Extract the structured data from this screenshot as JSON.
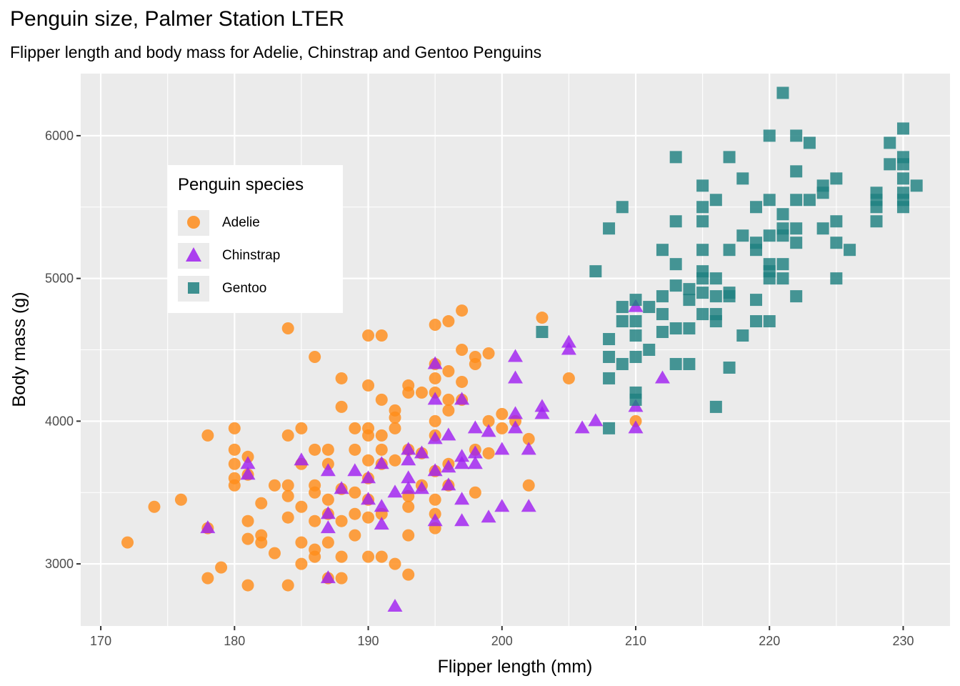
{
  "chart_data": {
    "type": "scatter",
    "title": "Penguin size, Palmer Station LTER",
    "subtitle": "Flipper length and body mass for Adelie, Chinstrap and Gentoo Penguins",
    "xlabel": "Flipper length (mm)",
    "ylabel": "Body mass (g)",
    "xlim": [
      168.5,
      233.5
    ],
    "ylim": [
      2565,
      6435
    ],
    "x_ticks": [
      170,
      180,
      190,
      200,
      210,
      220,
      230
    ],
    "y_ticks": [
      3000,
      4000,
      5000,
      6000
    ],
    "grid": true,
    "legend": {
      "title": "Penguin species",
      "placement": "inside top-left"
    },
    "series": [
      {
        "name": "Adelie",
        "color": "#FF8C1A",
        "shape": "circle",
        "points": [
          [
            172,
            3150
          ],
          [
            174,
            3400
          ],
          [
            176,
            3450
          ],
          [
            178,
            3900
          ],
          [
            178,
            3250
          ],
          [
            178,
            2900
          ],
          [
            179,
            2975
          ],
          [
            180,
            3950
          ],
          [
            180,
            3800
          ],
          [
            180,
            3700
          ],
          [
            180,
            3600
          ],
          [
            180,
            3550
          ],
          [
            181,
            3750
          ],
          [
            181,
            3625
          ],
          [
            181,
            3300
          ],
          [
            181,
            3175
          ],
          [
            181,
            2850
          ],
          [
            182,
            3200
          ],
          [
            182,
            3150
          ],
          [
            182,
            3425
          ],
          [
            183,
            3550
          ],
          [
            183,
            3075
          ],
          [
            184,
            4650
          ],
          [
            184,
            3900
          ],
          [
            184,
            3550
          ],
          [
            184,
            3475
          ],
          [
            184,
            3325
          ],
          [
            184,
            2850
          ],
          [
            185,
            3950
          ],
          [
            185,
            3700
          ],
          [
            185,
            3400
          ],
          [
            185,
            3150
          ],
          [
            185,
            3000
          ],
          [
            186,
            4450
          ],
          [
            186,
            3800
          ],
          [
            186,
            3550
          ],
          [
            186,
            3500
          ],
          [
            186,
            3300
          ],
          [
            186,
            3100
          ],
          [
            186,
            3050
          ],
          [
            187,
            3800
          ],
          [
            187,
            3700
          ],
          [
            187,
            3450
          ],
          [
            187,
            3350
          ],
          [
            187,
            3150
          ],
          [
            187,
            2900
          ],
          [
            188,
            4300
          ],
          [
            188,
            4100
          ],
          [
            188,
            3525
          ],
          [
            188,
            3300
          ],
          [
            188,
            3050
          ],
          [
            188,
            2900
          ],
          [
            189,
            3950
          ],
          [
            189,
            3800
          ],
          [
            189,
            3500
          ],
          [
            189,
            3350
          ],
          [
            189,
            3200
          ],
          [
            190,
            4600
          ],
          [
            190,
            4250
          ],
          [
            190,
            3950
          ],
          [
            190,
            3900
          ],
          [
            190,
            3725
          ],
          [
            190,
            3600
          ],
          [
            190,
            3450
          ],
          [
            190,
            3325
          ],
          [
            190,
            3050
          ],
          [
            191,
            4600
          ],
          [
            191,
            4150
          ],
          [
            191,
            3900
          ],
          [
            191,
            3800
          ],
          [
            191,
            3700
          ],
          [
            191,
            3350
          ],
          [
            191,
            3050
          ],
          [
            192,
            4075
          ],
          [
            192,
            4025
          ],
          [
            192,
            3950
          ],
          [
            192,
            3725
          ],
          [
            192,
            3000
          ],
          [
            193,
            4250
          ],
          [
            193,
            4200
          ],
          [
            193,
            3800
          ],
          [
            193,
            3475
          ],
          [
            193,
            3400
          ],
          [
            193,
            3200
          ],
          [
            193,
            2925
          ],
          [
            194,
            4200
          ],
          [
            194,
            3775
          ],
          [
            194,
            3550
          ],
          [
            195,
            4675
          ],
          [
            195,
            4400
          ],
          [
            195,
            4300
          ],
          [
            195,
            4200
          ],
          [
            195,
            4000
          ],
          [
            195,
            3900
          ],
          [
            195,
            3650
          ],
          [
            195,
            3450
          ],
          [
            195,
            3350
          ],
          [
            195,
            3250
          ],
          [
            196,
            4700
          ],
          [
            196,
            4350
          ],
          [
            196,
            4150
          ],
          [
            196,
            4075
          ],
          [
            196,
            3700
          ],
          [
            196,
            3550
          ],
          [
            197,
            4775
          ],
          [
            197,
            4500
          ],
          [
            197,
            4275
          ],
          [
            197,
            4150
          ],
          [
            198,
            4450
          ],
          [
            198,
            4400
          ],
          [
            198,
            3800
          ],
          [
            198,
            3500
          ],
          [
            199,
            4475
          ],
          [
            199,
            4000
          ],
          [
            199,
            3775
          ],
          [
            200,
            4050
          ],
          [
            200,
            3950
          ],
          [
            201,
            4000
          ],
          [
            202,
            3875
          ],
          [
            202,
            3550
          ],
          [
            203,
            4725
          ],
          [
            205,
            4300
          ],
          [
            210,
            4000
          ]
        ]
      },
      {
        "name": "Chinstrap",
        "color": "#A020F0",
        "shape": "triangle",
        "points": [
          [
            178,
            3250
          ],
          [
            181,
            3700
          ],
          [
            181,
            3625
          ],
          [
            185,
            3725
          ],
          [
            187,
            3650
          ],
          [
            187,
            3350
          ],
          [
            187,
            3250
          ],
          [
            187,
            2900
          ],
          [
            188,
            3525
          ],
          [
            189,
            3650
          ],
          [
            190,
            3600
          ],
          [
            190,
            3450
          ],
          [
            191,
            3700
          ],
          [
            191,
            3400
          ],
          [
            191,
            3275
          ],
          [
            192,
            3500
          ],
          [
            192,
            2700
          ],
          [
            193,
            3800
          ],
          [
            193,
            3725
          ],
          [
            193,
            3600
          ],
          [
            193,
            3525
          ],
          [
            194,
            3775
          ],
          [
            194,
            3525
          ],
          [
            195,
            4400
          ],
          [
            195,
            4150
          ],
          [
            195,
            3875
          ],
          [
            195,
            3650
          ],
          [
            195,
            3300
          ],
          [
            196,
            3900
          ],
          [
            196,
            3675
          ],
          [
            196,
            3550
          ],
          [
            197,
            4150
          ],
          [
            197,
            3750
          ],
          [
            197,
            3700
          ],
          [
            197,
            3450
          ],
          [
            197,
            3300
          ],
          [
            198,
            3950
          ],
          [
            198,
            3775
          ],
          [
            198,
            3700
          ],
          [
            199,
            3925
          ],
          [
            199,
            3325
          ],
          [
            200,
            3800
          ],
          [
            200,
            3400
          ],
          [
            201,
            4450
          ],
          [
            201,
            4300
          ],
          [
            201,
            4050
          ],
          [
            201,
            3950
          ],
          [
            202,
            3800
          ],
          [
            202,
            3400
          ],
          [
            203,
            4100
          ],
          [
            203,
            4050
          ],
          [
            205,
            4550
          ],
          [
            205,
            4500
          ],
          [
            206,
            3950
          ],
          [
            207,
            4000
          ],
          [
            210,
            4800
          ],
          [
            210,
            4100
          ],
          [
            210,
            3950
          ],
          [
            212,
            4300
          ]
        ]
      },
      {
        "name": "Gentoo",
        "color": "#1F8080",
        "shape": "square",
        "points": [
          [
            203,
            4625
          ],
          [
            207,
            5050
          ],
          [
            208,
            5350
          ],
          [
            208,
            4575
          ],
          [
            208,
            4450
          ],
          [
            208,
            4300
          ],
          [
            208,
            3950
          ],
          [
            209,
            5500
          ],
          [
            209,
            4800
          ],
          [
            209,
            4700
          ],
          [
            209,
            4400
          ],
          [
            210,
            4850
          ],
          [
            210,
            4700
          ],
          [
            210,
            4600
          ],
          [
            210,
            4450
          ],
          [
            210,
            4200
          ],
          [
            210,
            4150
          ],
          [
            211,
            4800
          ],
          [
            211,
            4500
          ],
          [
            212,
            5200
          ],
          [
            212,
            4875
          ],
          [
            212,
            4750
          ],
          [
            212,
            4625
          ],
          [
            213,
            5850
          ],
          [
            213,
            5400
          ],
          [
            213,
            5100
          ],
          [
            213,
            4950
          ],
          [
            213,
            4650
          ],
          [
            213,
            4400
          ],
          [
            214,
            4925
          ],
          [
            214,
            4850
          ],
          [
            214,
            4650
          ],
          [
            214,
            4400
          ],
          [
            215,
            5650
          ],
          [
            215,
            5500
          ],
          [
            215,
            5400
          ],
          [
            215,
            5200
          ],
          [
            215,
            5050
          ],
          [
            215,
            5000
          ],
          [
            215,
            4900
          ],
          [
            215,
            4750
          ],
          [
            216,
            5550
          ],
          [
            216,
            5000
          ],
          [
            216,
            4875
          ],
          [
            216,
            4750
          ],
          [
            216,
            4700
          ],
          [
            216,
            4100
          ],
          [
            217,
            5850
          ],
          [
            217,
            5200
          ],
          [
            217,
            4900
          ],
          [
            217,
            4875
          ],
          [
            217,
            4375
          ],
          [
            218,
            5700
          ],
          [
            218,
            5300
          ],
          [
            218,
            4600
          ],
          [
            219,
            5500
          ],
          [
            219,
            5250
          ],
          [
            219,
            5200
          ],
          [
            219,
            4850
          ],
          [
            219,
            4700
          ],
          [
            220,
            6000
          ],
          [
            220,
            5550
          ],
          [
            220,
            5300
          ],
          [
            220,
            5100
          ],
          [
            220,
            5050
          ],
          [
            220,
            5000
          ],
          [
            220,
            4700
          ],
          [
            221,
            6300
          ],
          [
            221,
            5450
          ],
          [
            221,
            5350
          ],
          [
            221,
            5300
          ],
          [
            221,
            5100
          ],
          [
            221,
            5000
          ],
          [
            222,
            6000
          ],
          [
            222,
            5750
          ],
          [
            222,
            5550
          ],
          [
            222,
            5350
          ],
          [
            222,
            5250
          ],
          [
            222,
            4875
          ],
          [
            223,
            5950
          ],
          [
            223,
            5550
          ],
          [
            224,
            5650
          ],
          [
            224,
            5350
          ],
          [
            224,
            5600
          ],
          [
            225,
            5700
          ],
          [
            225,
            5400
          ],
          [
            225,
            5250
          ],
          [
            225,
            5000
          ],
          [
            226,
            5200
          ],
          [
            228,
            5600
          ],
          [
            228,
            5550
          ],
          [
            228,
            5500
          ],
          [
            228,
            5400
          ],
          [
            229,
            5950
          ],
          [
            229,
            5800
          ],
          [
            230,
            6050
          ],
          [
            230,
            5850
          ],
          [
            230,
            5800
          ],
          [
            230,
            5700
          ],
          [
            230,
            5600
          ],
          [
            230,
            5550
          ],
          [
            230,
            5500
          ],
          [
            231,
            5650
          ]
        ]
      }
    ]
  }
}
